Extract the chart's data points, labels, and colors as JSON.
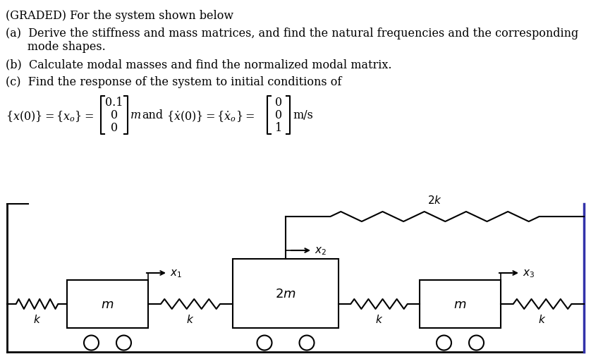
{
  "bg_color": "#ffffff",
  "title_line": "(GRADED) For the system shown below",
  "line_a1": "(a)  Derive the stiffness and mass matrices, and find the natural frequencies and the corresponding",
  "line_a2": "      mode shapes.",
  "line_b": "(b)  Calculate modal masses and find the normalized modal matrix.",
  "line_c": "(c)  Find the response of the system to initial conditions of",
  "fig_width": 8.38,
  "fig_height": 5.1,
  "wall_color": "#3333aa",
  "line_color": "#000000"
}
